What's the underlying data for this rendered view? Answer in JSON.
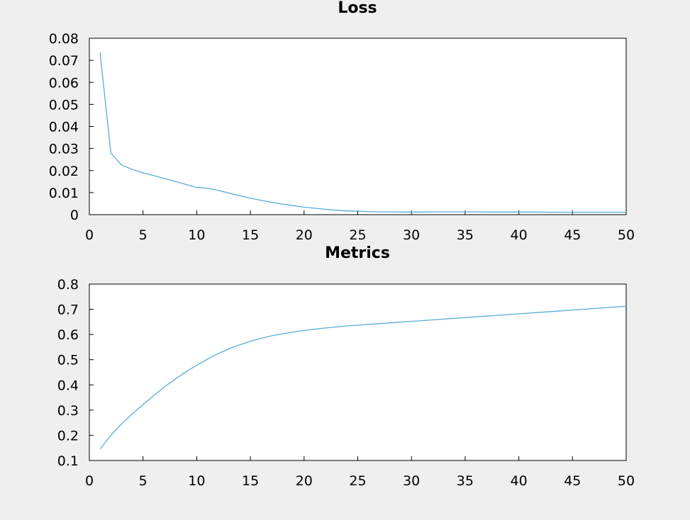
{
  "background_color": "#efefef",
  "line_color": "#5aaad4",
  "chart_data": [
    {
      "type": "line",
      "title": "Loss",
      "xlabel": "",
      "ylabel": "",
      "xlim": [
        0,
        50
      ],
      "ylim": [
        0,
        0.08
      ],
      "x_ticks": [
        0,
        5,
        10,
        15,
        20,
        25,
        30,
        35,
        40,
        45,
        50
      ],
      "x_tick_labels": [
        "0",
        "5",
        "10",
        "15",
        "20",
        "25",
        "30",
        "35",
        "40",
        "45",
        "50"
      ],
      "y_ticks": [
        0,
        0.01,
        0.02,
        0.03,
        0.04,
        0.05,
        0.06,
        0.07,
        0.08
      ],
      "y_tick_labels": [
        "0",
        "0.01",
        "0.02",
        "0.03",
        "0.04",
        "0.05",
        "0.06",
        "0.07",
        "0.08"
      ],
      "grid": false,
      "series": [
        {
          "x": [
            1,
            2,
            3,
            4,
            5,
            6,
            7,
            8,
            9,
            10,
            11,
            12,
            13,
            14,
            15,
            16,
            17,
            18,
            19,
            20,
            21,
            22,
            23,
            24,
            25,
            26,
            27,
            28,
            29,
            30,
            31,
            32,
            33,
            34,
            35,
            36,
            37,
            38,
            39,
            40,
            41,
            42,
            43,
            44,
            45,
            46,
            47,
            48,
            49,
            50
          ],
          "values": [
            0.0735,
            0.028,
            0.0225,
            0.0205,
            0.019,
            0.0177,
            0.0164,
            0.0151,
            0.0137,
            0.0123,
            0.012,
            0.011,
            0.0098,
            0.0086,
            0.0075,
            0.0065,
            0.0056,
            0.0048,
            0.0041,
            0.0034,
            0.0029,
            0.0024,
            0.002,
            0.0017,
            0.0015,
            0.0014,
            0.0013,
            0.0013,
            0.0012,
            0.0012,
            0.0012,
            0.0013,
            0.0013,
            0.0013,
            0.0013,
            0.0013,
            0.0012,
            0.0012,
            0.0012,
            0.0012,
            0.0012,
            0.0012,
            0.0011,
            0.0011,
            0.0011,
            0.0011,
            0.0011,
            0.0011,
            0.0011,
            0.0011
          ]
        }
      ]
    },
    {
      "type": "line",
      "title": "Metrics",
      "xlabel": "",
      "ylabel": "",
      "xlim": [
        0,
        50
      ],
      "ylim": [
        0.1,
        0.8
      ],
      "x_ticks": [
        0,
        5,
        10,
        15,
        20,
        25,
        30,
        35,
        40,
        45,
        50
      ],
      "x_tick_labels": [
        "0",
        "5",
        "10",
        "15",
        "20",
        "25",
        "30",
        "35",
        "40",
        "45",
        "50"
      ],
      "y_ticks": [
        0.1,
        0.2,
        0.3,
        0.4,
        0.5,
        0.6,
        0.7,
        0.8
      ],
      "y_tick_labels": [
        "0.1",
        "0.2",
        "0.3",
        "0.4",
        "0.5",
        "0.6",
        "0.7",
        "0.8"
      ],
      "grid": false,
      "series": [
        {
          "x": [
            1,
            2,
            3,
            4,
            5,
            6,
            7,
            8,
            9,
            10,
            11,
            12,
            13,
            14,
            15,
            16,
            17,
            18,
            19,
            20,
            21,
            22,
            23,
            24,
            25,
            26,
            27,
            28,
            29,
            30,
            31,
            32,
            33,
            34,
            35,
            36,
            37,
            38,
            39,
            40,
            41,
            42,
            43,
            44,
            45,
            46,
            47,
            48,
            49,
            50
          ],
          "values": [
            0.145,
            0.2,
            0.245,
            0.285,
            0.322,
            0.358,
            0.392,
            0.423,
            0.452,
            0.478,
            0.502,
            0.524,
            0.543,
            0.559,
            0.573,
            0.585,
            0.595,
            0.603,
            0.61,
            0.616,
            0.621,
            0.626,
            0.63,
            0.634,
            0.637,
            0.64,
            0.643,
            0.646,
            0.649,
            0.652,
            0.655,
            0.658,
            0.661,
            0.664,
            0.667,
            0.67,
            0.673,
            0.676,
            0.679,
            0.682,
            0.685,
            0.688,
            0.691,
            0.694,
            0.697,
            0.7,
            0.703,
            0.706,
            0.709,
            0.712
          ]
        }
      ]
    }
  ]
}
